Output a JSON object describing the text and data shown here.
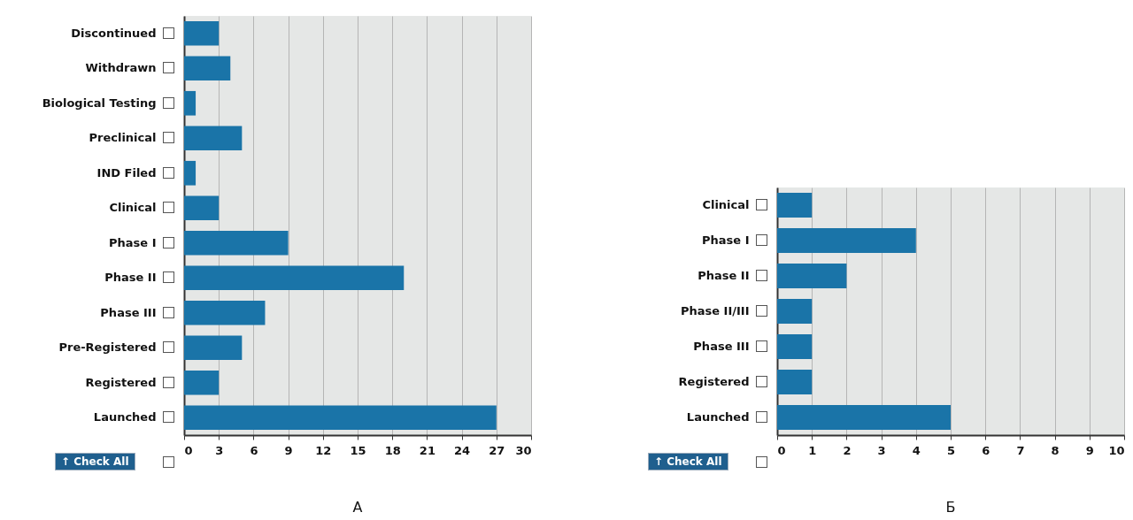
{
  "chart_data": [
    {
      "type": "bar",
      "orientation": "horizontal",
      "title": "А",
      "categories": [
        "Discontinued",
        "Withdrawn",
        "Biological Testing",
        "Preclinical",
        "IND Filed",
        "Clinical",
        "Phase I",
        "Phase II",
        "Phase III",
        "Pre-Registered",
        "Registered",
        "Launched"
      ],
      "values": [
        3,
        4,
        1,
        5,
        1,
        3,
        9,
        19,
        7,
        5,
        3,
        27
      ],
      "color": "#1a74a8",
      "annotations": [
        "↑ Check All"
      ],
      "xlim": [
        0,
        30
      ],
      "xticks": [
        0,
        3,
        6,
        9,
        12,
        15,
        18,
        21,
        24,
        27,
        30
      ],
      "grid": "x"
    },
    {
      "type": "bar",
      "orientation": "horizontal",
      "title": "Б",
      "categories": [
        "Clinical",
        "Phase I",
        "Phase II",
        "Phase II/III",
        "Phase III",
        "Registered",
        "Launched"
      ],
      "values": [
        1,
        4,
        2,
        1,
        1,
        1,
        5
      ],
      "color": "#1a74a8",
      "annotations": [
        "↑ Check All"
      ],
      "xlim": [
        0,
        10
      ],
      "xticks": [
        0,
        1,
        2,
        3,
        4,
        5,
        6,
        7,
        8,
        9,
        10
      ],
      "grid": "x"
    }
  ]
}
